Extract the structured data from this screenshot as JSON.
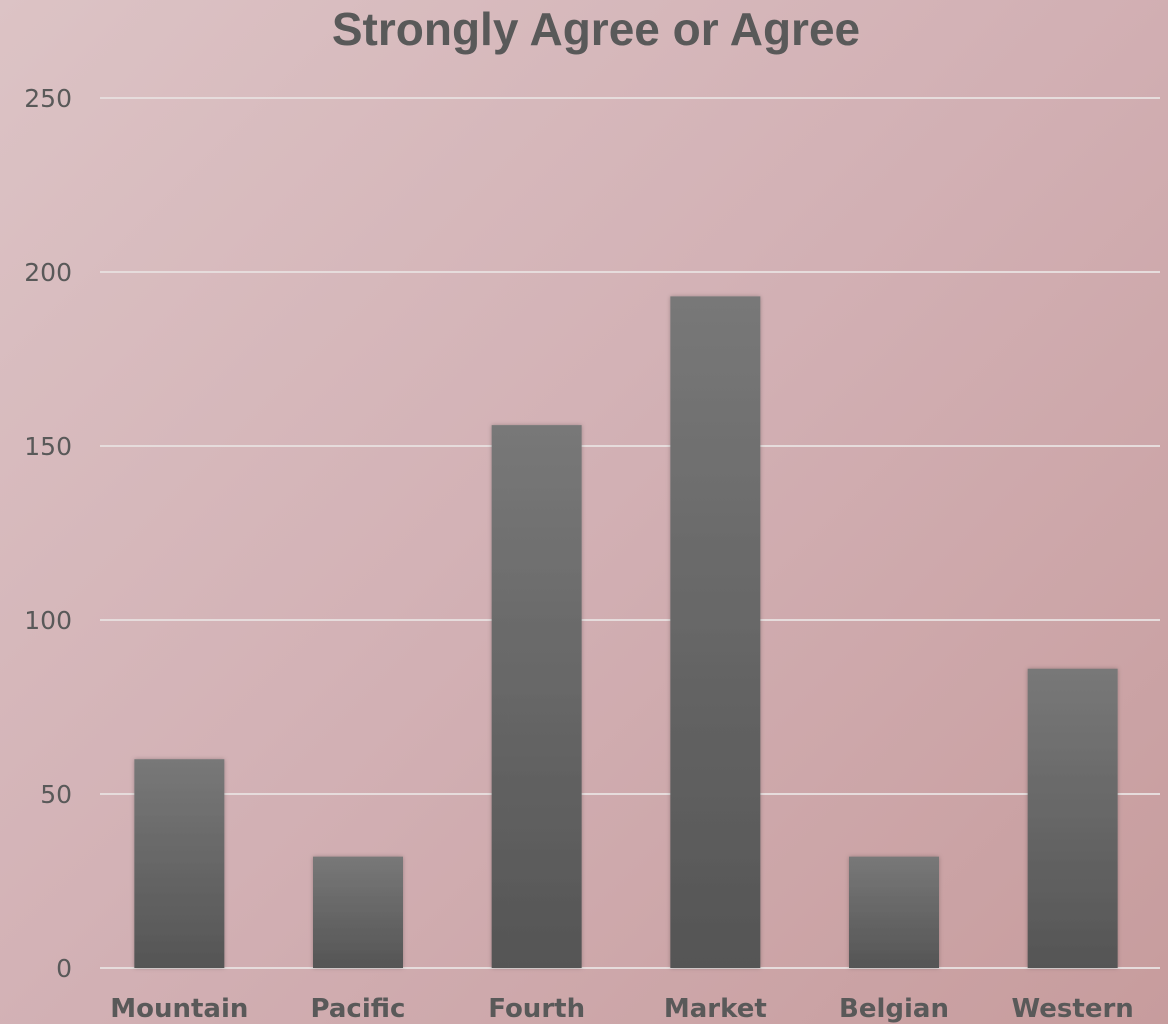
{
  "chart_data": {
    "type": "bar",
    "title": "Strongly Agree or Agree",
    "xlabel": "",
    "ylabel": "",
    "categories": [
      "Mountain",
      "Pacific",
      "Fourth",
      "Market",
      "Belgian",
      "Western"
    ],
    "values": [
      60,
      32,
      156,
      193,
      32,
      86
    ],
    "ylim": [
      0,
      250
    ],
    "yticks": [
      "0",
      "50",
      "100",
      "150",
      "200",
      "250"
    ],
    "grid": true,
    "legend": "none",
    "colors": {
      "bar_top": "#787878",
      "bar_bottom": "#555555",
      "text": "#595959",
      "gridline": "#e6dcdc"
    }
  }
}
